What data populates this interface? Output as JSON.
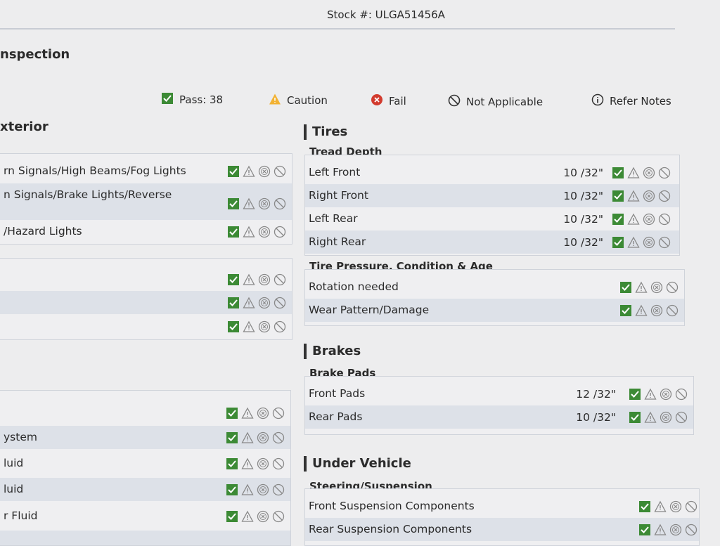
{
  "header": {
    "stock": "Stock #: ULGA51456A",
    "title": "nspection"
  },
  "legend": [
    "Pass: 38",
    "Caution",
    "Fail",
    "Not Applicable",
    "Refer Notes"
  ],
  "left": {
    "section": "xterior",
    "group1": [
      "rn Signals/High Beams/Fog Lights",
      "n Signals/Brake Lights/Reverse",
      "/Hazard Lights"
    ],
    "group3": [
      "ystem",
      "luid",
      "luid",
      "r Fluid"
    ]
  },
  "tires": {
    "section": "Tires",
    "tread": {
      "title": "Tread Depth",
      "rows": [
        {
          "label": "Left Front",
          "value": "10 /32\""
        },
        {
          "label": "Right Front",
          "value": "10 /32\""
        },
        {
          "label": "Left Rear",
          "value": "10 /32\""
        },
        {
          "label": "Right Rear",
          "value": "10 /32\""
        }
      ]
    },
    "pressure": {
      "title": "Tire Pressure, Condition & Age",
      "rows": [
        "Rotation needed",
        "Wear Pattern/Damage"
      ]
    }
  },
  "brakes": {
    "section": "Brakes",
    "pads": {
      "title": "Brake Pads",
      "rows": [
        {
          "label": "Front Pads",
          "value": "12 /32\""
        },
        {
          "label": "Rear Pads",
          "value": "10 /32\""
        }
      ]
    }
  },
  "under": {
    "section": "Under Vehicle",
    "steering": {
      "title": "Steering/Suspension",
      "rows": [
        "Front Suspension Components",
        "Rear Suspension Components"
      ]
    }
  }
}
